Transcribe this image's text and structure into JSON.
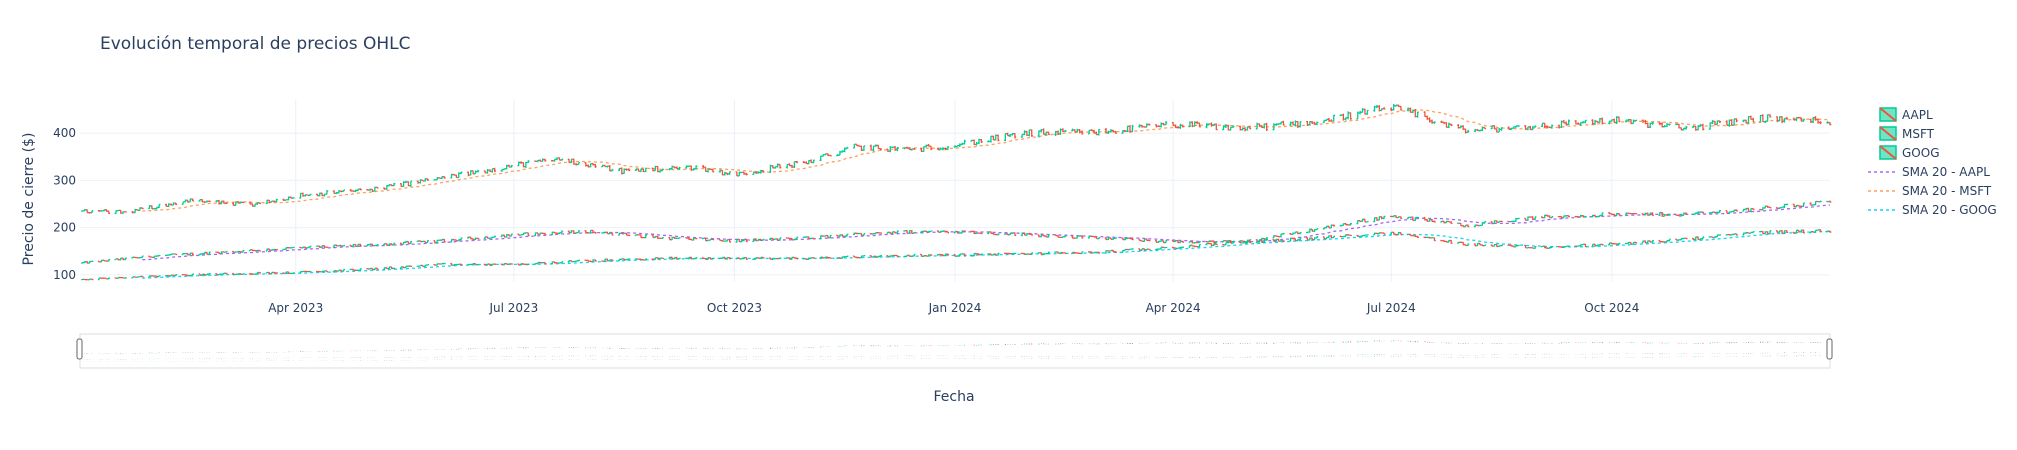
{
  "chart_data": {
    "type": "ohlc",
    "title": "Evolución temporal de precios OHLC",
    "xlabel": "Fecha",
    "ylabel": "Precio de cierre ($)",
    "x_range": [
      "2023-01-01",
      "2024-12-31"
    ],
    "ylim": [
      85,
      470
    ],
    "x_ticks": [
      {
        "date": "2023-04-01",
        "label": "Apr 2023"
      },
      {
        "date": "2023-07-01",
        "label": "Jul 2023"
      },
      {
        "date": "2023-10-01",
        "label": "Oct 2023"
      },
      {
        "date": "2024-01-01",
        "label": "Jan 2024"
      },
      {
        "date": "2024-04-01",
        "label": "Apr 2024"
      },
      {
        "date": "2024-07-01",
        "label": "Jul 2024"
      },
      {
        "date": "2024-10-01",
        "label": "Oct 2024"
      }
    ],
    "y_ticks": [
      100,
      200,
      300,
      400
    ],
    "grid": true,
    "legend_position": "right",
    "range_slider": true,
    "colors": {
      "increasing": "#00cc96",
      "decreasing": "#ef553b",
      "sma_aapl": "#ab63fa",
      "sma_msft": "#ffa15a",
      "sma_goog": "#19d3f3"
    },
    "series": [
      {
        "name": "AAPL",
        "kind": "ohlc",
        "close_anchors": [
          [
            "2023-01-01",
            125
          ],
          [
            "2023-02-01",
            140
          ],
          [
            "2023-03-01",
            148
          ],
          [
            "2023-04-01",
            157
          ],
          [
            "2023-05-01",
            163
          ],
          [
            "2023-06-01",
            172
          ],
          [
            "2023-07-01",
            185
          ],
          [
            "2023-08-01",
            192
          ],
          [
            "2023-09-01",
            178
          ],
          [
            "2023-10-01",
            172
          ],
          [
            "2023-11-01",
            178
          ],
          [
            "2023-12-01",
            190
          ],
          [
            "2024-01-01",
            192
          ],
          [
            "2024-02-01",
            185
          ],
          [
            "2024-03-01",
            178
          ],
          [
            "2024-04-01",
            170
          ],
          [
            "2024-05-01",
            170
          ],
          [
            "2024-06-01",
            198
          ],
          [
            "2024-07-01",
            225
          ],
          [
            "2024-08-01",
            205
          ],
          [
            "2024-09-01",
            222
          ],
          [
            "2024-10-01",
            228
          ],
          [
            "2024-11-01",
            228
          ],
          [
            "2024-12-01",
            240
          ],
          [
            "2024-12-31",
            255
          ]
        ]
      },
      {
        "name": "MSFT",
        "kind": "ohlc",
        "close_anchors": [
          [
            "2023-01-01",
            235
          ],
          [
            "2023-01-20",
            232
          ],
          [
            "2023-02-15",
            258
          ],
          [
            "2023-03-01",
            252
          ],
          [
            "2023-03-15",
            248
          ],
          [
            "2023-04-01",
            268
          ],
          [
            "2023-05-01",
            280
          ],
          [
            "2023-06-01",
            305
          ],
          [
            "2023-07-01",
            332
          ],
          [
            "2023-07-20",
            345
          ],
          [
            "2023-08-15",
            320
          ],
          [
            "2023-09-15",
            328
          ],
          [
            "2023-10-01",
            312
          ],
          [
            "2023-11-01",
            340
          ],
          [
            "2023-11-20",
            370
          ],
          [
            "2023-12-15",
            365
          ],
          [
            "2024-01-01",
            375
          ],
          [
            "2024-02-01",
            400
          ],
          [
            "2024-03-01",
            402
          ],
          [
            "2024-04-01",
            418
          ],
          [
            "2024-05-01",
            410
          ],
          [
            "2024-06-01",
            425
          ],
          [
            "2024-07-01",
            455
          ],
          [
            "2024-08-01",
            405
          ],
          [
            "2024-09-01",
            415
          ],
          [
            "2024-10-01",
            428
          ],
          [
            "2024-11-01",
            410
          ],
          [
            "2024-12-01",
            432
          ],
          [
            "2024-12-31",
            425
          ]
        ]
      },
      {
        "name": "GOOG",
        "kind": "ohlc",
        "close_anchors": [
          [
            "2023-01-01",
            90
          ],
          [
            "2023-02-01",
            98
          ],
          [
            "2023-03-01",
            102
          ],
          [
            "2023-04-01",
            105
          ],
          [
            "2023-05-01",
            112
          ],
          [
            "2023-06-01",
            122
          ],
          [
            "2023-07-01",
            122
          ],
          [
            "2023-08-01",
            130
          ],
          [
            "2023-09-01",
            135
          ],
          [
            "2023-10-01",
            135
          ],
          [
            "2023-11-01",
            135
          ],
          [
            "2023-12-01",
            140
          ],
          [
            "2024-01-01",
            142
          ],
          [
            "2024-02-01",
            145
          ],
          [
            "2024-03-01",
            148
          ],
          [
            "2024-04-01",
            158
          ],
          [
            "2024-05-01",
            170
          ],
          [
            "2024-06-01",
            178
          ],
          [
            "2024-07-01",
            190
          ],
          [
            "2024-08-01",
            165
          ],
          [
            "2024-09-01",
            158
          ],
          [
            "2024-10-01",
            165
          ],
          [
            "2024-11-01",
            175
          ],
          [
            "2024-12-01",
            190
          ],
          [
            "2024-12-31",
            193
          ]
        ]
      },
      {
        "name": "SMA 20 - AAPL",
        "kind": "sma",
        "of": "AAPL"
      },
      {
        "name": "SMA 20 - MSFT",
        "kind": "sma",
        "of": "MSFT"
      },
      {
        "name": "SMA 20 - GOOG",
        "kind": "sma",
        "of": "GOOG"
      }
    ]
  }
}
